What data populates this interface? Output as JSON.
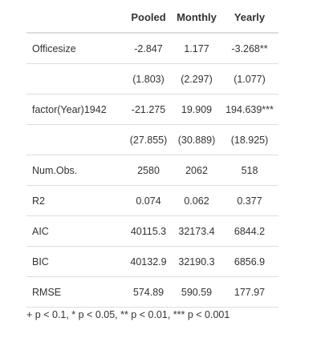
{
  "table": {
    "headers": [
      "",
      "Pooled",
      "Monthly",
      "Yearly"
    ],
    "rows": [
      {
        "label": "Officesize",
        "values": [
          "-2.847",
          "1.177",
          "-3.268**"
        ]
      },
      {
        "label": "",
        "values": [
          "(1.803)",
          "(2.297)",
          "(1.077)"
        ]
      },
      {
        "label": "factor(Year)1942",
        "values": [
          "-21.275",
          "19.909",
          "194.639***"
        ]
      },
      {
        "label": "",
        "values": [
          "(27.855)",
          "(30.889)",
          "(18.925)"
        ]
      },
      {
        "label": "Num.Obs.",
        "values": [
          "2580",
          "2062",
          "518"
        ]
      },
      {
        "label": "R2",
        "values": [
          "0.074",
          "0.062",
          "0.377"
        ]
      },
      {
        "label": "AIC",
        "values": [
          "40115.3",
          "32173.4",
          "6844.2"
        ]
      },
      {
        "label": "BIC",
        "values": [
          "40132.9",
          "32190.3",
          "6856.9"
        ]
      },
      {
        "label": "RMSE",
        "values": [
          "574.89",
          "590.59",
          "177.97"
        ]
      }
    ]
  },
  "footnote": "+ p < 0.1, * p < 0.05, ** p < 0.01, *** p < 0.001",
  "colors": {
    "text": "#333333",
    "rule": "#dddddd",
    "background": "#ffffff"
  }
}
